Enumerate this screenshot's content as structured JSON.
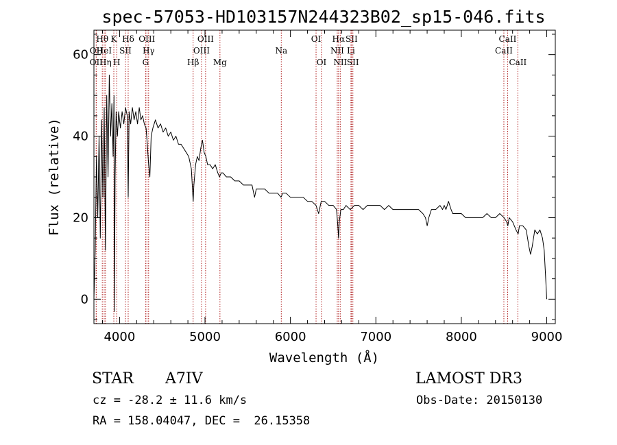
{
  "chart_data": {
    "type": "line",
    "title": "spec-57053-HD103157N244323B02_sp15-046.fits",
    "xlabel": "Wavelength (Å)",
    "ylabel": "Flux (relative)",
    "xlim": [
      3700,
      9100
    ],
    "ylim": [
      -6,
      66
    ],
    "xticks": [
      4000,
      5000,
      6000,
      7000,
      8000,
      9000
    ],
    "yticks": [
      0,
      20,
      40,
      60
    ],
    "x_minor_step": 200,
    "y_minor_step": 5,
    "series": [
      {
        "name": "spectrum",
        "color": "#000000",
        "points": [
          [
            3700,
            0
          ],
          [
            3715,
            12
          ],
          [
            3730,
            35
          ],
          [
            3745,
            20
          ],
          [
            3760,
            40
          ],
          [
            3775,
            15
          ],
          [
            3790,
            44
          ],
          [
            3805,
            25
          ],
          [
            3820,
            47
          ],
          [
            3835,
            12
          ],
          [
            3850,
            50
          ],
          [
            3865,
            30
          ],
          [
            3880,
            55
          ],
          [
            3895,
            40
          ],
          [
            3910,
            48
          ],
          [
            3925,
            35
          ],
          [
            3935,
            50
          ],
          [
            3940,
            -3
          ],
          [
            3948,
            30
          ],
          [
            3960,
            46
          ],
          [
            3975,
            40
          ],
          [
            3990,
            46
          ],
          [
            4010,
            42
          ],
          [
            4030,
            46
          ],
          [
            4050,
            43
          ],
          [
            4070,
            47
          ],
          [
            4090,
            45
          ],
          [
            4101,
            25
          ],
          [
            4112,
            46
          ],
          [
            4130,
            43
          ],
          [
            4150,
            47
          ],
          [
            4170,
            44
          ],
          [
            4190,
            46
          ],
          [
            4210,
            43
          ],
          [
            4230,
            47
          ],
          [
            4250,
            44
          ],
          [
            4270,
            45
          ],
          [
            4290,
            43
          ],
          [
            4310,
            42
          ],
          [
            4325,
            38
          ],
          [
            4340,
            33
          ],
          [
            4355,
            30
          ],
          [
            4370,
            40
          ],
          [
            4390,
            42
          ],
          [
            4420,
            44
          ],
          [
            4450,
            42
          ],
          [
            4480,
            43
          ],
          [
            4510,
            41
          ],
          [
            4540,
            42
          ],
          [
            4570,
            40
          ],
          [
            4600,
            41
          ],
          [
            4630,
            39
          ],
          [
            4660,
            40
          ],
          [
            4690,
            38
          ],
          [
            4720,
            38
          ],
          [
            4750,
            37
          ],
          [
            4780,
            36
          ],
          [
            4810,
            35
          ],
          [
            4840,
            32
          ],
          [
            4856,
            26
          ],
          [
            4862,
            24
          ],
          [
            4870,
            28
          ],
          [
            4890,
            33
          ],
          [
            4910,
            35
          ],
          [
            4930,
            34
          ],
          [
            4950,
            37
          ],
          [
            4970,
            39
          ],
          [
            4990,
            36
          ],
          [
            5010,
            35
          ],
          [
            5030,
            33
          ],
          [
            5060,
            33
          ],
          [
            5090,
            32
          ],
          [
            5120,
            33
          ],
          [
            5150,
            31
          ],
          [
            5170,
            30
          ],
          [
            5190,
            31
          ],
          [
            5210,
            31
          ],
          [
            5250,
            30
          ],
          [
            5300,
            30
          ],
          [
            5350,
            29
          ],
          [
            5400,
            29
          ],
          [
            5450,
            28
          ],
          [
            5500,
            28
          ],
          [
            5550,
            28
          ],
          [
            5580,
            25
          ],
          [
            5600,
            27
          ],
          [
            5650,
            27
          ],
          [
            5700,
            27
          ],
          [
            5750,
            26
          ],
          [
            5800,
            26
          ],
          [
            5850,
            26
          ],
          [
            5890,
            25
          ],
          [
            5910,
            26
          ],
          [
            5950,
            26
          ],
          [
            6000,
            25
          ],
          [
            6050,
            25
          ],
          [
            6100,
            25
          ],
          [
            6150,
            25
          ],
          [
            6200,
            24
          ],
          [
            6250,
            24
          ],
          [
            6300,
            23
          ],
          [
            6330,
            21
          ],
          [
            6360,
            24
          ],
          [
            6400,
            24
          ],
          [
            6450,
            23
          ],
          [
            6500,
            23
          ],
          [
            6540,
            22
          ],
          [
            6555,
            18
          ],
          [
            6563,
            15
          ],
          [
            6572,
            19
          ],
          [
            6590,
            22
          ],
          [
            6620,
            22
          ],
          [
            6650,
            23
          ],
          [
            6700,
            22
          ],
          [
            6750,
            23
          ],
          [
            6800,
            23
          ],
          [
            6850,
            22
          ],
          [
            6900,
            23
          ],
          [
            6950,
            23
          ],
          [
            7000,
            23
          ],
          [
            7050,
            23
          ],
          [
            7100,
            22
          ],
          [
            7150,
            23
          ],
          [
            7200,
            22
          ],
          [
            7250,
            22
          ],
          [
            7300,
            22
          ],
          [
            7350,
            22
          ],
          [
            7400,
            22
          ],
          [
            7450,
            22
          ],
          [
            7500,
            22
          ],
          [
            7550,
            21
          ],
          [
            7580,
            20
          ],
          [
            7600,
            18
          ],
          [
            7620,
            20
          ],
          [
            7650,
            22
          ],
          [
            7700,
            22
          ],
          [
            7750,
            23
          ],
          [
            7780,
            22
          ],
          [
            7800,
            23
          ],
          [
            7820,
            22
          ],
          [
            7850,
            24
          ],
          [
            7880,
            22
          ],
          [
            7900,
            21
          ],
          [
            7950,
            21
          ],
          [
            8000,
            21
          ],
          [
            8050,
            20
          ],
          [
            8100,
            20
          ],
          [
            8150,
            20
          ],
          [
            8200,
            20
          ],
          [
            8250,
            20
          ],
          [
            8300,
            21
          ],
          [
            8350,
            20
          ],
          [
            8400,
            20
          ],
          [
            8450,
            21
          ],
          [
            8500,
            20
          ],
          [
            8530,
            19
          ],
          [
            8545,
            18
          ],
          [
            8560,
            20
          ],
          [
            8600,
            19
          ],
          [
            8640,
            17
          ],
          [
            8665,
            16
          ],
          [
            8680,
            18
          ],
          [
            8720,
            18
          ],
          [
            8760,
            17
          ],
          [
            8790,
            13
          ],
          [
            8810,
            11
          ],
          [
            8830,
            13
          ],
          [
            8860,
            17
          ],
          [
            8890,
            16
          ],
          [
            8920,
            17
          ],
          [
            8950,
            15
          ],
          [
            8970,
            12
          ],
          [
            8985,
            6
          ],
          [
            9000,
            0
          ]
        ]
      }
    ],
    "reference_lines": [
      {
        "label": "Hθ",
        "x": 3798,
        "row": 0
      },
      {
        "label": "OII",
        "x": 3727,
        "row": 1
      },
      {
        "label": "OII",
        "x": 3727,
        "row": 2
      },
      {
        "label": "HeI",
        "x": 3820,
        "row": 1
      },
      {
        "label": "Hη",
        "x": 3835,
        "row": 2
      },
      {
        "label": "K",
        "x": 3933,
        "row": 0
      },
      {
        "label": "SII",
        "x": 4069,
        "row": 1
      },
      {
        "label": "H",
        "x": 3968,
        "row": 2
      },
      {
        "label": "Hδ",
        "x": 4101,
        "row": 0
      },
      {
        "label": "OIII",
        "x": 4320,
        "row": 0
      },
      {
        "label": "Hγ",
        "x": 4340,
        "row": 1
      },
      {
        "label": "G",
        "x": 4305,
        "row": 2
      },
      {
        "label": "OIII",
        "x": 5007,
        "row": 0
      },
      {
        "label": "OIII",
        "x": 4959,
        "row": 1
      },
      {
        "label": "Hβ",
        "x": 4861,
        "row": 2
      },
      {
        "label": "Mg",
        "x": 5175,
        "row": 2
      },
      {
        "label": "Na",
        "x": 5893,
        "row": 1
      },
      {
        "label": "OI",
        "x": 6300,
        "row": 0
      },
      {
        "label": "OI",
        "x": 6364,
        "row": 2
      },
      {
        "label": "Hα",
        "x": 6563,
        "row": 0
      },
      {
        "label": "SII",
        "x": 6716,
        "row": 0
      },
      {
        "label": "NII",
        "x": 6548,
        "row": 1
      },
      {
        "label": "Li",
        "x": 6708,
        "row": 1
      },
      {
        "label": "NII",
        "x": 6583,
        "row": 2
      },
      {
        "label": "SII",
        "x": 6731,
        "row": 2
      },
      {
        "label": "CaII",
        "x": 8542,
        "row": 0
      },
      {
        "label": "CaII",
        "x": 8498,
        "row": 1
      },
      {
        "label": "CaII",
        "x": 8662,
        "row": 2
      }
    ],
    "reference_line_color": "#b22222"
  },
  "info": {
    "object_class": "STAR",
    "subclass": "A7IV",
    "survey": "LAMOST DR3",
    "cz": "cz = -28.2 ± 11.6 km/s",
    "obs_date": "Obs-Date: 20150130",
    "coords": "RA = 158.04047, DEC =  26.15358"
  }
}
